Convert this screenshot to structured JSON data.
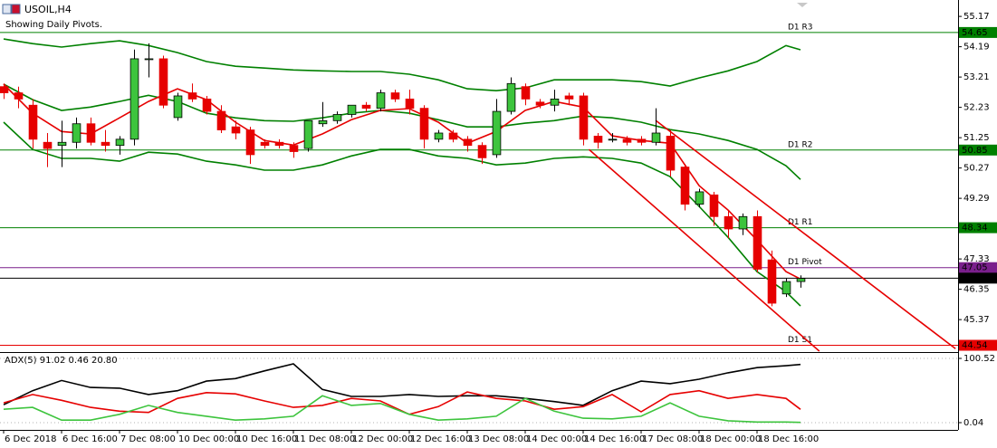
{
  "chart_data": [
    {
      "type": "candlestick",
      "title": "USOIL,H4",
      "subtitle": "Showing Daily Pivots.",
      "categories": [
        "6 Dec 2018",
        null,
        null,
        null,
        "6 Dec 16:00",
        null,
        null,
        null,
        "7 Dec 08:00",
        null,
        null,
        null,
        "10 Dec 00:00",
        null,
        null,
        null,
        "10 Dec 16:00",
        null,
        null,
        null,
        "11 Dec 08:00",
        null,
        null,
        null,
        "12 Dec 00:00",
        null,
        null,
        null,
        "12 Dec 16:00",
        null,
        null,
        null,
        "13 Dec 08:00",
        null,
        null,
        null,
        "14 Dec 00:00",
        null,
        null,
        null,
        "14 Dec 16:00",
        null,
        null,
        null,
        "17 Dec 08:00",
        null,
        null,
        null,
        "18 Dec 00:00",
        null,
        null,
        null,
        "18 Dec 16:00",
        null,
        null,
        null
      ],
      "open": [
        52.9,
        52.7,
        52.3,
        51.1,
        51.0,
        51.1,
        51.7,
        51.1,
        51.0,
        51.2,
        53.8,
        53.8,
        51.9,
        52.7,
        52.5,
        52.1,
        51.6,
        51.5,
        51.1,
        51.1,
        51.0,
        50.9,
        51.7,
        51.8,
        52.0,
        52.3,
        52.2,
        52.7,
        52.5,
        52.2,
        51.2,
        51.4,
        51.2,
        51.0,
        50.7,
        52.1,
        52.9,
        52.4,
        52.3,
        52.6,
        52.6,
        51.3,
        51.2,
        51.2,
        51.2,
        51.1,
        51.3,
        50.3,
        49.1,
        49.4,
        48.7,
        48.3,
        48.7,
        47.3,
        46.2,
        46.6
      ],
      "high": [
        53.0,
        52.9,
        52.5,
        51.4,
        51.8,
        51.9,
        51.9,
        51.5,
        51.3,
        54.1,
        54.3,
        53.9,
        52.7,
        53.0,
        52.6,
        52.3,
        51.8,
        51.6,
        51.2,
        51.2,
        51.1,
        51.8,
        52.4,
        52.1,
        52.3,
        52.4,
        52.8,
        52.8,
        52.8,
        52.3,
        51.5,
        51.5,
        51.3,
        51.1,
        52.5,
        53.2,
        53.0,
        52.5,
        52.8,
        52.7,
        52.7,
        51.4,
        51.4,
        51.3,
        51.3,
        52.2,
        51.5,
        50.4,
        49.6,
        49.5,
        48.9,
        48.8,
        48.9,
        47.6,
        46.7,
        46.8
      ],
      "low": [
        52.5,
        52.2,
        50.9,
        50.3,
        50.3,
        50.9,
        51.0,
        50.8,
        50.7,
        51.0,
        53.2,
        52.2,
        51.8,
        52.4,
        52.0,
        51.4,
        51.2,
        50.4,
        50.9,
        50.9,
        50.6,
        50.8,
        51.6,
        51.7,
        51.9,
        52.1,
        52.1,
        52.4,
        52.0,
        50.9,
        51.1,
        51.1,
        50.8,
        50.4,
        50.6,
        52.0,
        52.3,
        52.2,
        52.1,
        52.3,
        51.0,
        50.9,
        51.1,
        51.0,
        51.0,
        51.0,
        50.0,
        48.9,
        49.0,
        48.4,
        48.0,
        48.1,
        46.9,
        45.8,
        46.1,
        46.4
      ],
      "close": [
        52.7,
        52.5,
        51.2,
        50.9,
        51.1,
        51.7,
        51.1,
        51.0,
        51.2,
        53.8,
        53.8,
        52.3,
        52.6,
        52.5,
        52.1,
        51.5,
        51.4,
        50.7,
        51.0,
        51.0,
        50.8,
        51.8,
        51.8,
        52.0,
        52.3,
        52.2,
        52.7,
        52.5,
        52.2,
        51.2,
        51.4,
        51.2,
        51.0,
        50.6,
        52.1,
        53.0,
        52.5,
        52.3,
        52.5,
        52.5,
        51.2,
        51.1,
        51.2,
        51.1,
        51.1,
        51.4,
        50.2,
        49.1,
        49.5,
        48.7,
        48.3,
        48.7,
        47.0,
        45.9,
        46.6,
        46.7
      ],
      "up_color": "#3dc43d",
      "down_color": "#e60000",
      "xlim": [
        -0.25,
        65.875
      ],
      "ylim": [
        44.35,
        55.7
      ],
      "yticks": [
        55.17,
        54.19,
        53.21,
        52.23,
        51.25,
        50.27,
        49.29,
        47.33,
        46.35,
        45.37
      ],
      "overlays": [
        {
          "color": "#008000",
          "x": [
            0,
            2,
            4,
            6,
            8,
            10,
            12,
            14,
            16,
            18,
            20,
            22,
            24,
            26,
            28,
            30,
            32,
            34,
            36,
            38,
            40,
            42,
            44,
            46,
            48,
            50,
            52,
            54,
            55
          ],
          "values": [
            54.44,
            54.29,
            54.18,
            54.29,
            54.38,
            54.23,
            54.0,
            53.71,
            53.56,
            53.5,
            53.44,
            53.41,
            53.39,
            53.39,
            53.3,
            53.12,
            52.83,
            52.77,
            52.86,
            53.12,
            53.12,
            53.12,
            53.06,
            52.92,
            53.18,
            53.41,
            53.71,
            54.23,
            54.09
          ]
        },
        {
          "color": "#008000",
          "x": [
            0,
            2,
            4,
            6,
            8,
            10,
            12,
            14,
            16,
            18,
            20,
            22,
            24,
            26,
            28,
            30,
            32,
            34,
            36,
            38,
            40,
            42,
            44,
            46,
            48,
            50,
            52,
            54,
            55
          ],
          "values": [
            52.98,
            52.48,
            52.13,
            52.24,
            52.42,
            52.62,
            52.42,
            52.04,
            51.89,
            51.8,
            51.78,
            51.89,
            52.04,
            52.13,
            52.04,
            51.83,
            51.6,
            51.6,
            51.72,
            51.8,
            51.95,
            51.89,
            51.75,
            51.51,
            51.37,
            51.16,
            50.87,
            50.34,
            49.9
          ]
        },
        {
          "color": "#008000",
          "x": [
            0,
            2,
            4,
            6,
            8,
            10,
            12,
            14,
            16,
            18,
            20,
            22,
            24,
            26,
            28,
            30,
            32,
            34,
            36,
            38,
            40,
            42,
            44,
            46,
            48,
            50,
            52,
            54,
            55
          ],
          "values": [
            51.75,
            50.87,
            50.58,
            50.58,
            50.49,
            50.78,
            50.72,
            50.49,
            50.37,
            50.2,
            50.2,
            50.37,
            50.66,
            50.87,
            50.87,
            50.66,
            50.58,
            50.37,
            50.43,
            50.58,
            50.63,
            50.58,
            50.43,
            49.99,
            49.03,
            48.03,
            46.92,
            46.27,
            45.81
          ]
        },
        {
          "color": "#e60000",
          "x": [
            0,
            2,
            4,
            6,
            8,
            10,
            12,
            14,
            16,
            18,
            20,
            22,
            24,
            26,
            28,
            30,
            32,
            34,
            36,
            38,
            40,
            42,
            44,
            46,
            48,
            50,
            52,
            54,
            55
          ],
          "values": [
            52.98,
            52.04,
            51.45,
            51.37,
            51.89,
            52.42,
            52.83,
            52.48,
            51.75,
            51.16,
            51.01,
            51.37,
            51.83,
            52.13,
            52.19,
            51.75,
            51.07,
            51.45,
            52.13,
            52.42,
            52.24,
            51.31,
            51.16,
            51.07,
            49.7,
            48.91,
            47.94,
            46.92,
            46.68
          ]
        },
        {
          "color": "#e60000",
          "x": [
            45,
            65.7
          ],
          "values": [
            51.81,
            44.43
          ]
        },
        {
          "color": "#e60000",
          "x": [
            40.4,
            56.3
          ],
          "values": [
            50.87,
            44.35
          ]
        }
      ],
      "levels": [
        {
          "name": "D1 R3",
          "value": 54.65,
          "color": "#008000"
        },
        {
          "name": "D1 R2",
          "value": 50.85,
          "color": "#008000"
        },
        {
          "name": "D1 R1",
          "value": 48.34,
          "color": "#008000"
        },
        {
          "name": "D1 Pivot",
          "value": 47.05,
          "color": "#7a1f8c"
        },
        {
          "name": "D1 S1",
          "value": 44.54,
          "color": "#e60000"
        }
      ],
      "current_price": {
        "value": 46.71,
        "color": "#000000"
      }
    },
    {
      "type": "line",
      "title": "ADX(5) 91.02 0.46 20.80",
      "xlim": [
        -0.25,
        65.875
      ],
      "ylim": [
        -9.9,
        109
      ],
      "yticks": [
        100.52,
        0.04
      ],
      "x": [
        0,
        2,
        4,
        6,
        8,
        10,
        12,
        14,
        16,
        18,
        20,
        22,
        24,
        26,
        28,
        30,
        32,
        34,
        36,
        38,
        40,
        42,
        44,
        46,
        48,
        50,
        52,
        54,
        55
      ],
      "series": [
        {
          "color": "#000000",
          "values": [
            28,
            50,
            66,
            55,
            54,
            44,
            50,
            65,
            69,
            81,
            92,
            52,
            41,
            41,
            44,
            41,
            42,
            42,
            38,
            33,
            27,
            50,
            65,
            61,
            68,
            78,
            86,
            89,
            91.02
          ]
        },
        {
          "color": "#e60000",
          "values": [
            31,
            44,
            35,
            24,
            18,
            16,
            38,
            47,
            45,
            34,
            24,
            27,
            38,
            34,
            13,
            25,
            48,
            38,
            34,
            21,
            25,
            44,
            17,
            44,
            50,
            38,
            44,
            38,
            20.8
          ]
        },
        {
          "color": "#3dc43d",
          "values": [
            21,
            24,
            4,
            4,
            13,
            27,
            16,
            10,
            4,
            6,
            10,
            42,
            27,
            30,
            13,
            4,
            6,
            10,
            38,
            18,
            7,
            6,
            10,
            31,
            10,
            3,
            1,
            1,
            0.46
          ]
        }
      ]
    }
  ]
}
